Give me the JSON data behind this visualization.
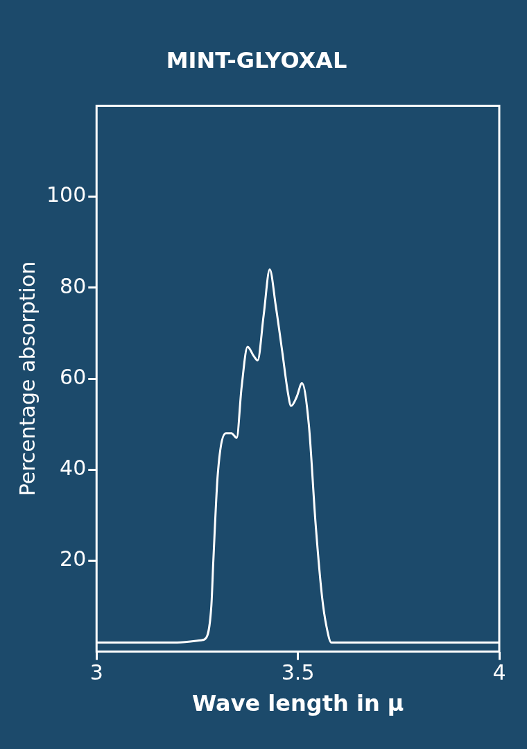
{
  "chart_data": {
    "type": "line",
    "title": "MINT-GLYOXAL",
    "xlabel": "Wave length in μ",
    "ylabel": "Percentage absorption",
    "x": [
      3.0,
      3.2,
      3.26,
      3.272,
      3.285,
      3.29,
      3.301,
      3.321,
      3.335,
      3.348,
      3.36,
      3.375,
      3.39,
      3.4,
      3.415,
      3.43,
      3.445,
      3.461,
      3.475,
      3.483,
      3.497,
      3.51,
      3.527,
      3.544,
      3.56,
      3.571,
      3.583,
      3.7,
      4.0
    ],
    "values": [
      2,
      2,
      2.5,
      3,
      10,
      20,
      39,
      48,
      48,
      47,
      58,
      67,
      65,
      64,
      74,
      84,
      76,
      66,
      57,
      54,
      56,
      59,
      50,
      28,
      12,
      5.5,
      2,
      2,
      2
    ],
    "color": "#ffffff",
    "marker": "none",
    "line_style": "solid",
    "xlim": [
      3,
      4
    ],
    "ylim": [
      0,
      120
    ],
    "xticks": [
      3,
      3.5,
      4
    ],
    "yticks": [
      20,
      40,
      60,
      80,
      100
    ]
  }
}
